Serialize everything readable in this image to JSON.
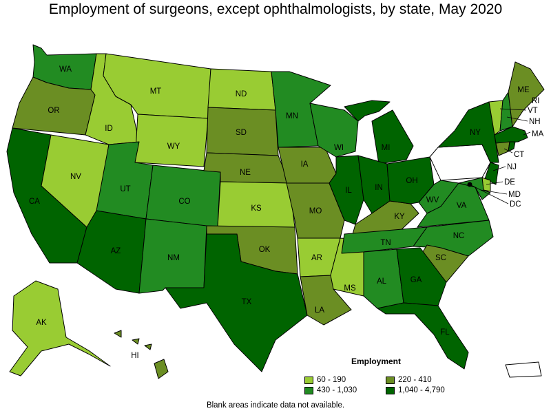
{
  "title": "Employment of surgeons, except ophthalmologists, by state, May 2020",
  "colors": {
    "c1": "#99cc33",
    "c2": "#6b8e23",
    "c3": "#228b22",
    "c4": "#006400",
    "none": "#ffffff"
  },
  "legend": {
    "title": "Employment",
    "items": [
      {
        "label": "60 - 190",
        "color": "#99cc33"
      },
      {
        "label": "220 - 410",
        "color": "#6b8e23"
      },
      {
        "label": "430 - 1,030",
        "color": "#228b22"
      },
      {
        "label": "1,040 - 4,790",
        "color": "#006400"
      }
    ]
  },
  "note": "Blank areas indicate data not available.",
  "states": {
    "WA": "WA",
    "OR": "OR",
    "CA": "CA",
    "NV": "NV",
    "ID": "ID",
    "MT": "MT",
    "WY": "WY",
    "UT": "UT",
    "AZ": "AZ",
    "CO": "CO",
    "NM": "NM",
    "ND": "ND",
    "SD": "SD",
    "NE": "NE",
    "KS": "KS",
    "OK": "OK",
    "TX": "TX",
    "MN": "MN",
    "IA": "IA",
    "MO": "MO",
    "AR": "AR",
    "LA": "LA",
    "WI": "WI",
    "IL": "IL",
    "MS": "MS",
    "MI": "MI",
    "IN": "IN",
    "KY": "KY",
    "TN": "TN",
    "AL": "AL",
    "OH": "OH",
    "WV": "WV",
    "GA": "GA",
    "FL": "FL",
    "SC": "SC",
    "NC": "NC",
    "VA": "VA",
    "NY": "NY",
    "ME": "ME",
    "VT": "VT",
    "NH": "NH",
    "MA": "MA",
    "CT": "CT",
    "RI": "RI",
    "NJ": "NJ",
    "DE": "DE",
    "MD": "MD",
    "DC": "DC",
    "AK": "AK",
    "HI": "HI"
  }
}
